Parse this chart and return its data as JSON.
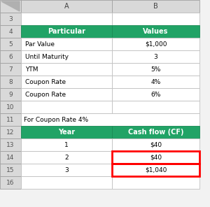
{
  "bg_color": "#f2f2f2",
  "header_green": "#21a366",
  "header_text": "#ffffff",
  "cell_bg": "#ffffff",
  "row_number_bg": "#d9d9d9",
  "col_header_bg": "#d9d9d9",
  "col_header_text": "#000000",
  "red_border_color": "#ff0000",
  "table1_header": [
    "Particular",
    "Values"
  ],
  "table1_rows": [
    [
      "Par Value",
      "$1,000"
    ],
    [
      "Until Maturity",
      "3"
    ],
    [
      "YTM",
      "5%"
    ],
    [
      "Coupon Rate",
      "4%"
    ],
    [
      "Coupon Rate",
      "6%"
    ]
  ],
  "table2_header": [
    "Year",
    "Cash flow (CF)"
  ],
  "table2_rows": [
    [
      "1",
      "$40"
    ],
    [
      "2",
      "$40"
    ],
    [
      "3",
      "$1,040"
    ]
  ],
  "red_border_rows": [
    1,
    2
  ],
  "note_text": "For Coupon Rate 4%",
  "fig_width": 3.0,
  "fig_height": 2.96,
  "dpi": 100
}
